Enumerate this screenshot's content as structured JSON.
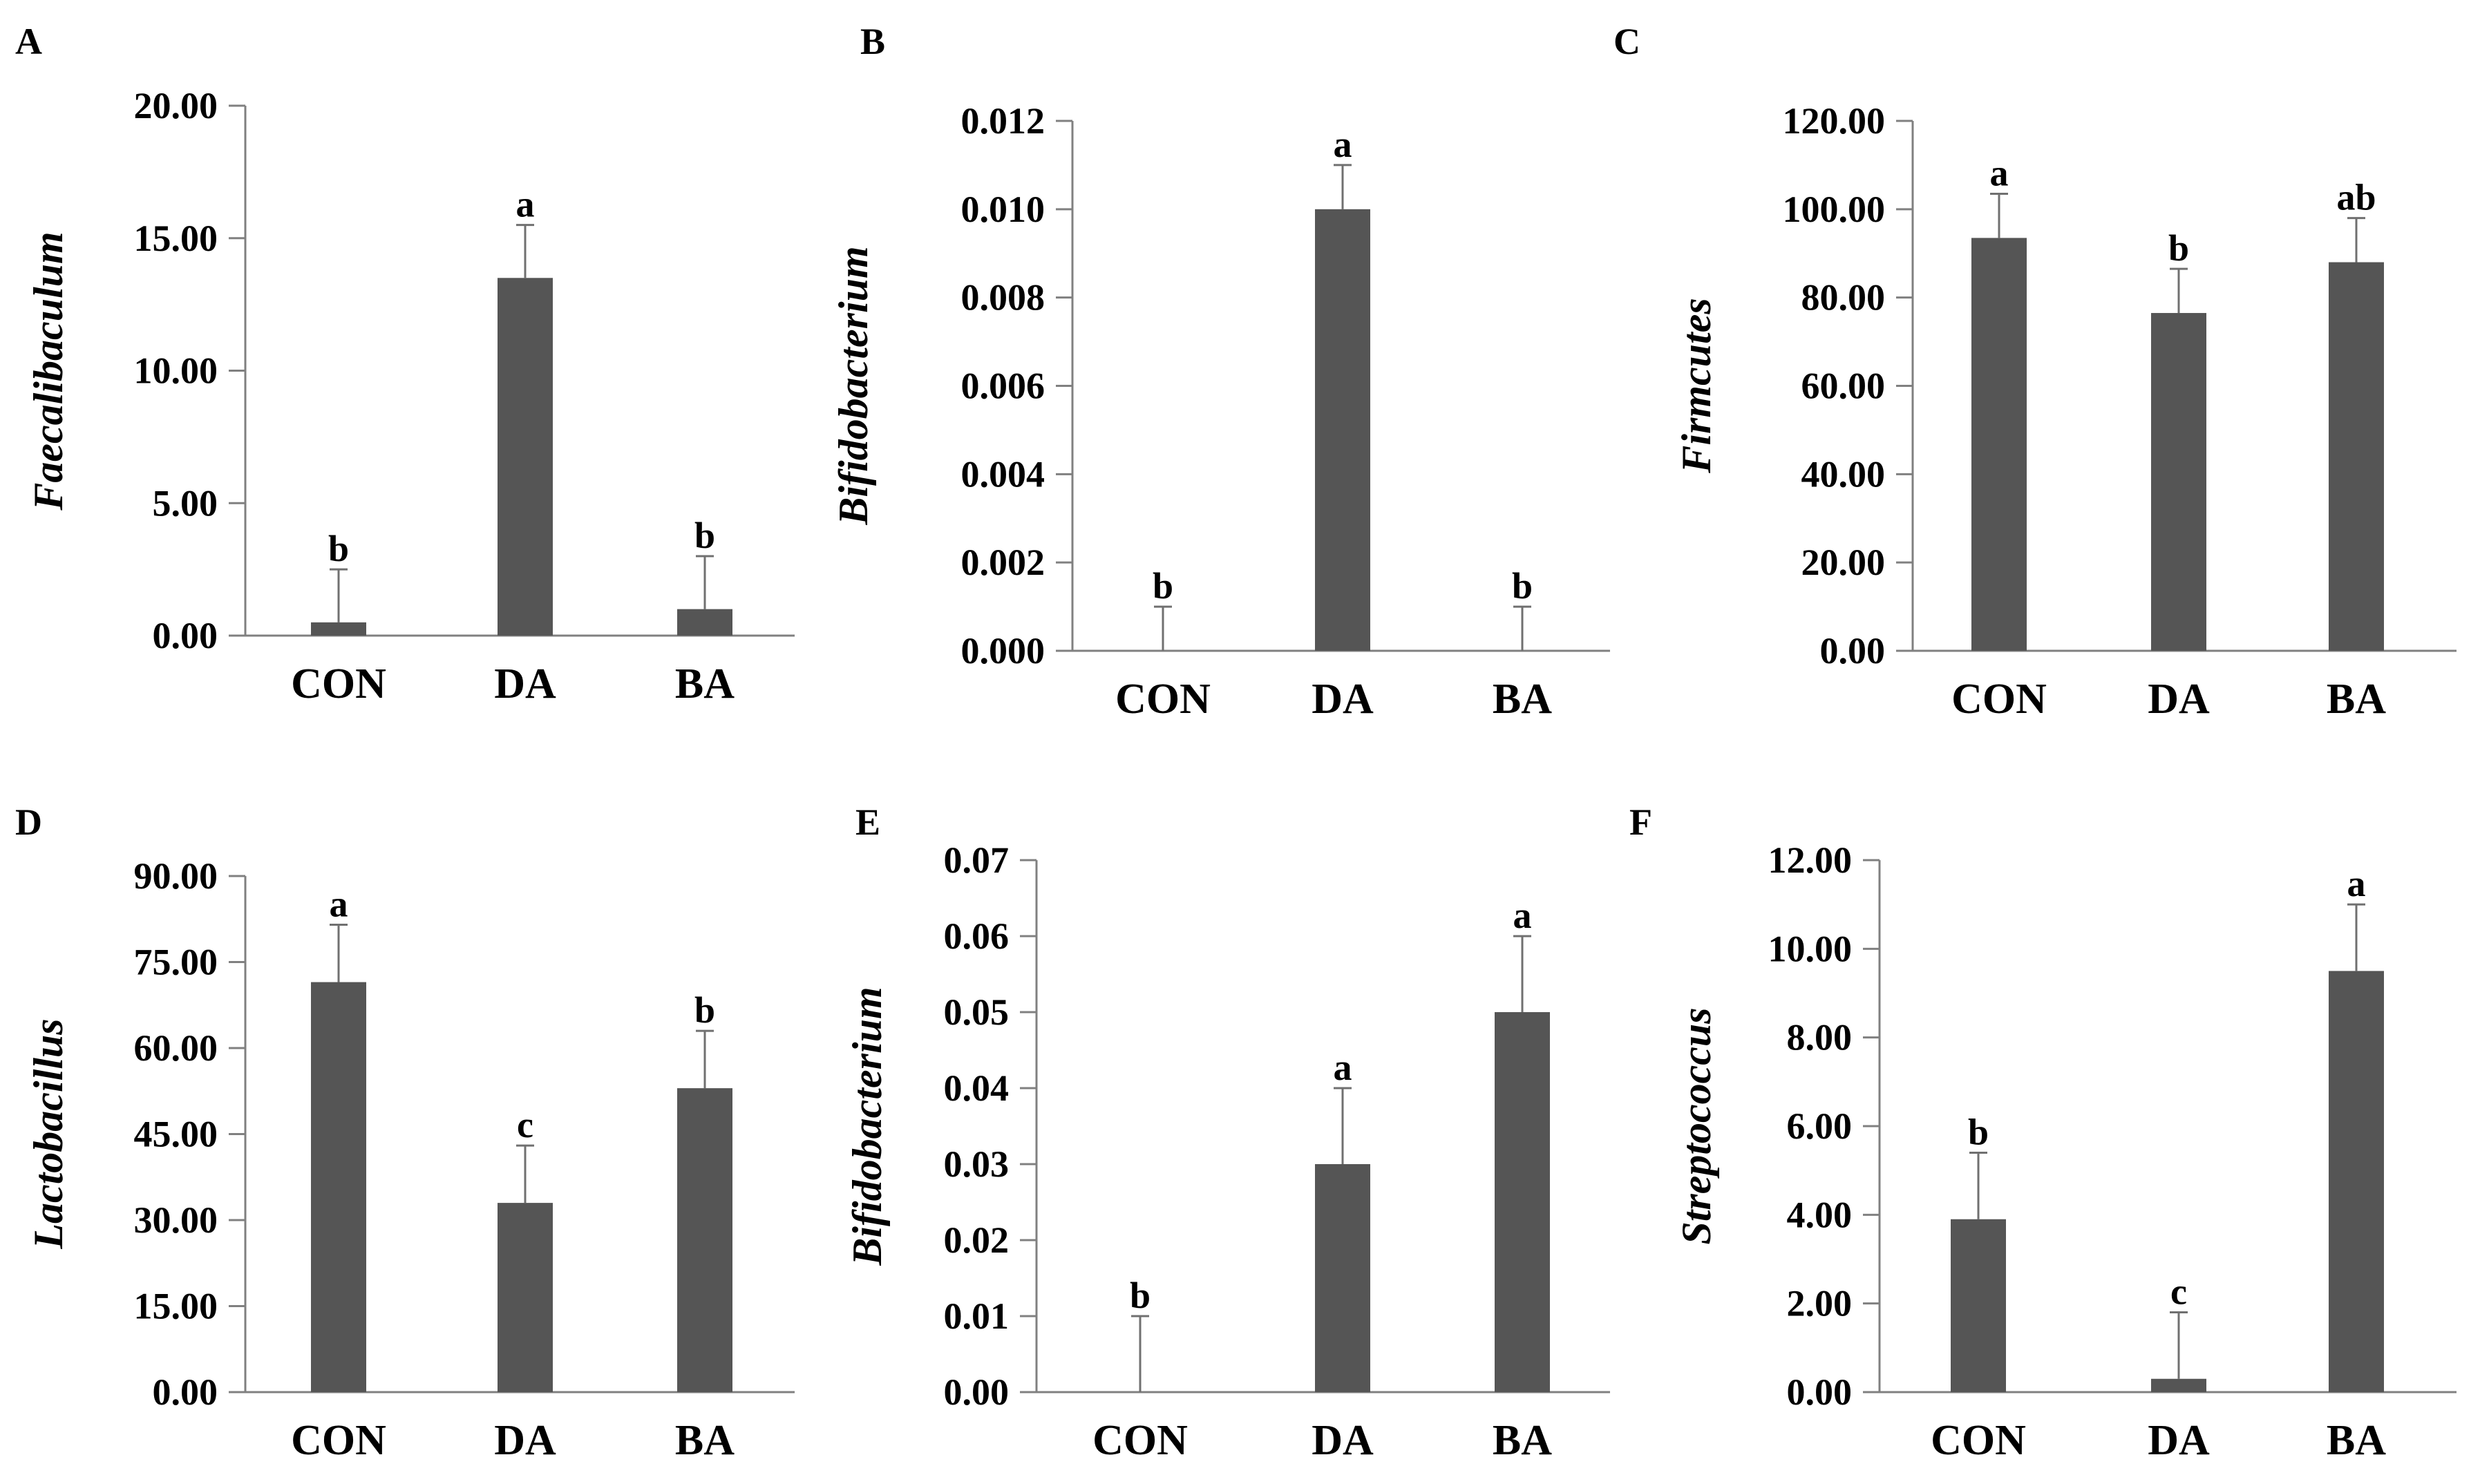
{
  "colors": {
    "bar": "#555555",
    "axis": "#808080",
    "errorbar": "#707070",
    "text": "#000000"
  },
  "chart_data": [
    {
      "panel": "A",
      "type": "bar",
      "ylabel": "Faecalibaculum",
      "categories": [
        "CON",
        "DA",
        "BA"
      ],
      "values": [
        0.5,
        13.5,
        1.0
      ],
      "errors": [
        2.0,
        2.0,
        2.0
      ],
      "significance": [
        "b",
        "a",
        "b"
      ],
      "ylim": [
        0,
        20
      ],
      "yticks": [
        "0.00",
        "5.00",
        "10.00",
        "15.00",
        "20.00"
      ]
    },
    {
      "panel": "B",
      "type": "bar",
      "ylabel": "Bifidobacterium",
      "categories": [
        "CON",
        "DA",
        "BA"
      ],
      "values": [
        0.0,
        0.01,
        0.0
      ],
      "errors": [
        0.001,
        0.001,
        0.001
      ],
      "significance": [
        "b",
        "a",
        "b"
      ],
      "ylim": [
        0,
        0.012
      ],
      "yticks": [
        "0.000",
        "0.002",
        "0.004",
        "0.006",
        "0.008",
        "0.010",
        "0.012"
      ]
    },
    {
      "panel": "C",
      "type": "bar",
      "ylabel": "Firmcutes",
      "categories": [
        "CON",
        "DA",
        "BA"
      ],
      "values": [
        93.5,
        76.5,
        88.0
      ],
      "errors": [
        10.0,
        10.0,
        10.0
      ],
      "significance": [
        "a",
        "b",
        "ab"
      ],
      "ylim": [
        0,
        120
      ],
      "yticks": [
        "0.00",
        "20.00",
        "40.00",
        "60.00",
        "80.00",
        "100.00",
        "120.00"
      ]
    },
    {
      "panel": "D",
      "type": "bar",
      "ylabel": "Lactobacillus",
      "categories": [
        "CON",
        "DA",
        "BA"
      ],
      "values": [
        71.5,
        33.0,
        53.0
      ],
      "errors": [
        10.0,
        10.0,
        10.0
      ],
      "significance": [
        "a",
        "c",
        "b"
      ],
      "ylim": [
        0,
        90
      ],
      "yticks": [
        "0.00",
        "15.00",
        "30.00",
        "45.00",
        "60.00",
        "75.00",
        "90.00"
      ]
    },
    {
      "panel": "E",
      "type": "bar",
      "ylabel": "Bifidobacterium",
      "categories": [
        "CON",
        "DA",
        "BA"
      ],
      "values": [
        0.0,
        0.03,
        0.05
      ],
      "errors": [
        0.01,
        0.01,
        0.01
      ],
      "significance": [
        "b",
        "a",
        "a"
      ],
      "ylim": [
        0,
        0.07
      ],
      "yticks": [
        "0.00",
        "0.01",
        "0.02",
        "0.03",
        "0.04",
        "0.05",
        "0.06",
        "0.07"
      ]
    },
    {
      "panel": "F",
      "type": "bar",
      "ylabel": "Streptococcus",
      "categories": [
        "CON",
        "DA",
        "BA"
      ],
      "values": [
        3.9,
        0.3,
        9.5
      ],
      "errors": [
        1.5,
        1.5,
        1.5
      ],
      "significance": [
        "b",
        "c",
        "a"
      ],
      "ylim": [
        0,
        12
      ],
      "yticks": [
        "0.00",
        "2.00",
        "4.00",
        "6.00",
        "8.00",
        "10.00",
        "12.00"
      ]
    }
  ]
}
